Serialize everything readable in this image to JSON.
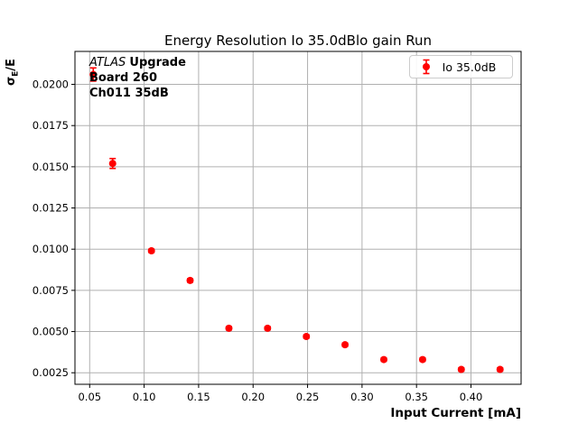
{
  "title": "Energy Resolution Io 35.0dBlo gain Run",
  "annotation": {
    "atlas": "ATLAS",
    "upgrade": "Upgrade",
    "line2": "Board 260",
    "line3": "Ch011 35dB"
  },
  "legend": {
    "label": "Io 35.0dB"
  },
  "axes": {
    "xlabel": "Input Current [mA]",
    "ylabel_sigma": "σ",
    "ylabel_sub": "E",
    "ylabel_rest": "/E"
  },
  "colors": {
    "marker": "#ff0000",
    "grid": "#b0b0b0",
    "axis": "#000000",
    "text": "#000000",
    "legend_border": "#cccccc"
  },
  "chart_data": {
    "type": "scatter",
    "title": "Energy Resolution Io 35.0dBlo gain Run",
    "xlabel": "Input Current [mA]",
    "ylabel": "σ_E/E",
    "grid": true,
    "legend_position": "upper right",
    "xlim": [
      0.0365,
      0.446
    ],
    "ylim": [
      0.0018,
      0.022
    ],
    "xticks": [
      0.05,
      0.1,
      0.15,
      0.2,
      0.25,
      0.3,
      0.35,
      0.4
    ],
    "xtick_labels": [
      "0.05",
      "0.10",
      "0.15",
      "0.20",
      "0.25",
      "0.30",
      "0.35",
      "0.40"
    ],
    "yticks": [
      0.0025,
      0.005,
      0.0075,
      0.01,
      0.0125,
      0.015,
      0.0175,
      0.02
    ],
    "ytick_labels": [
      "0.0025",
      "0.0050",
      "0.0075",
      "0.0100",
      "0.0125",
      "0.0150",
      "0.0175",
      "0.0200"
    ],
    "series": [
      {
        "name": "Io 35.0dB",
        "color": "#ff0000",
        "marker": "circle-with-errorbars",
        "x": [
          0.0533,
          0.0711,
          0.1067,
          0.1422,
          0.1778,
          0.2133,
          0.2489,
          0.2844,
          0.32,
          0.3556,
          0.3911,
          0.4267
        ],
        "y": [
          0.0206,
          0.0152,
          0.0099,
          0.0081,
          0.0052,
          0.0052,
          0.0047,
          0.0042,
          0.0033,
          0.0033,
          0.0027,
          0.0027
        ],
        "yerr": [
          0.0004,
          0.0003,
          0.0001,
          0.0001,
          0.0001,
          0.0001,
          0.0001,
          0.0001,
          0.0001,
          0.0001,
          0.0001,
          0.0001
        ]
      }
    ]
  }
}
